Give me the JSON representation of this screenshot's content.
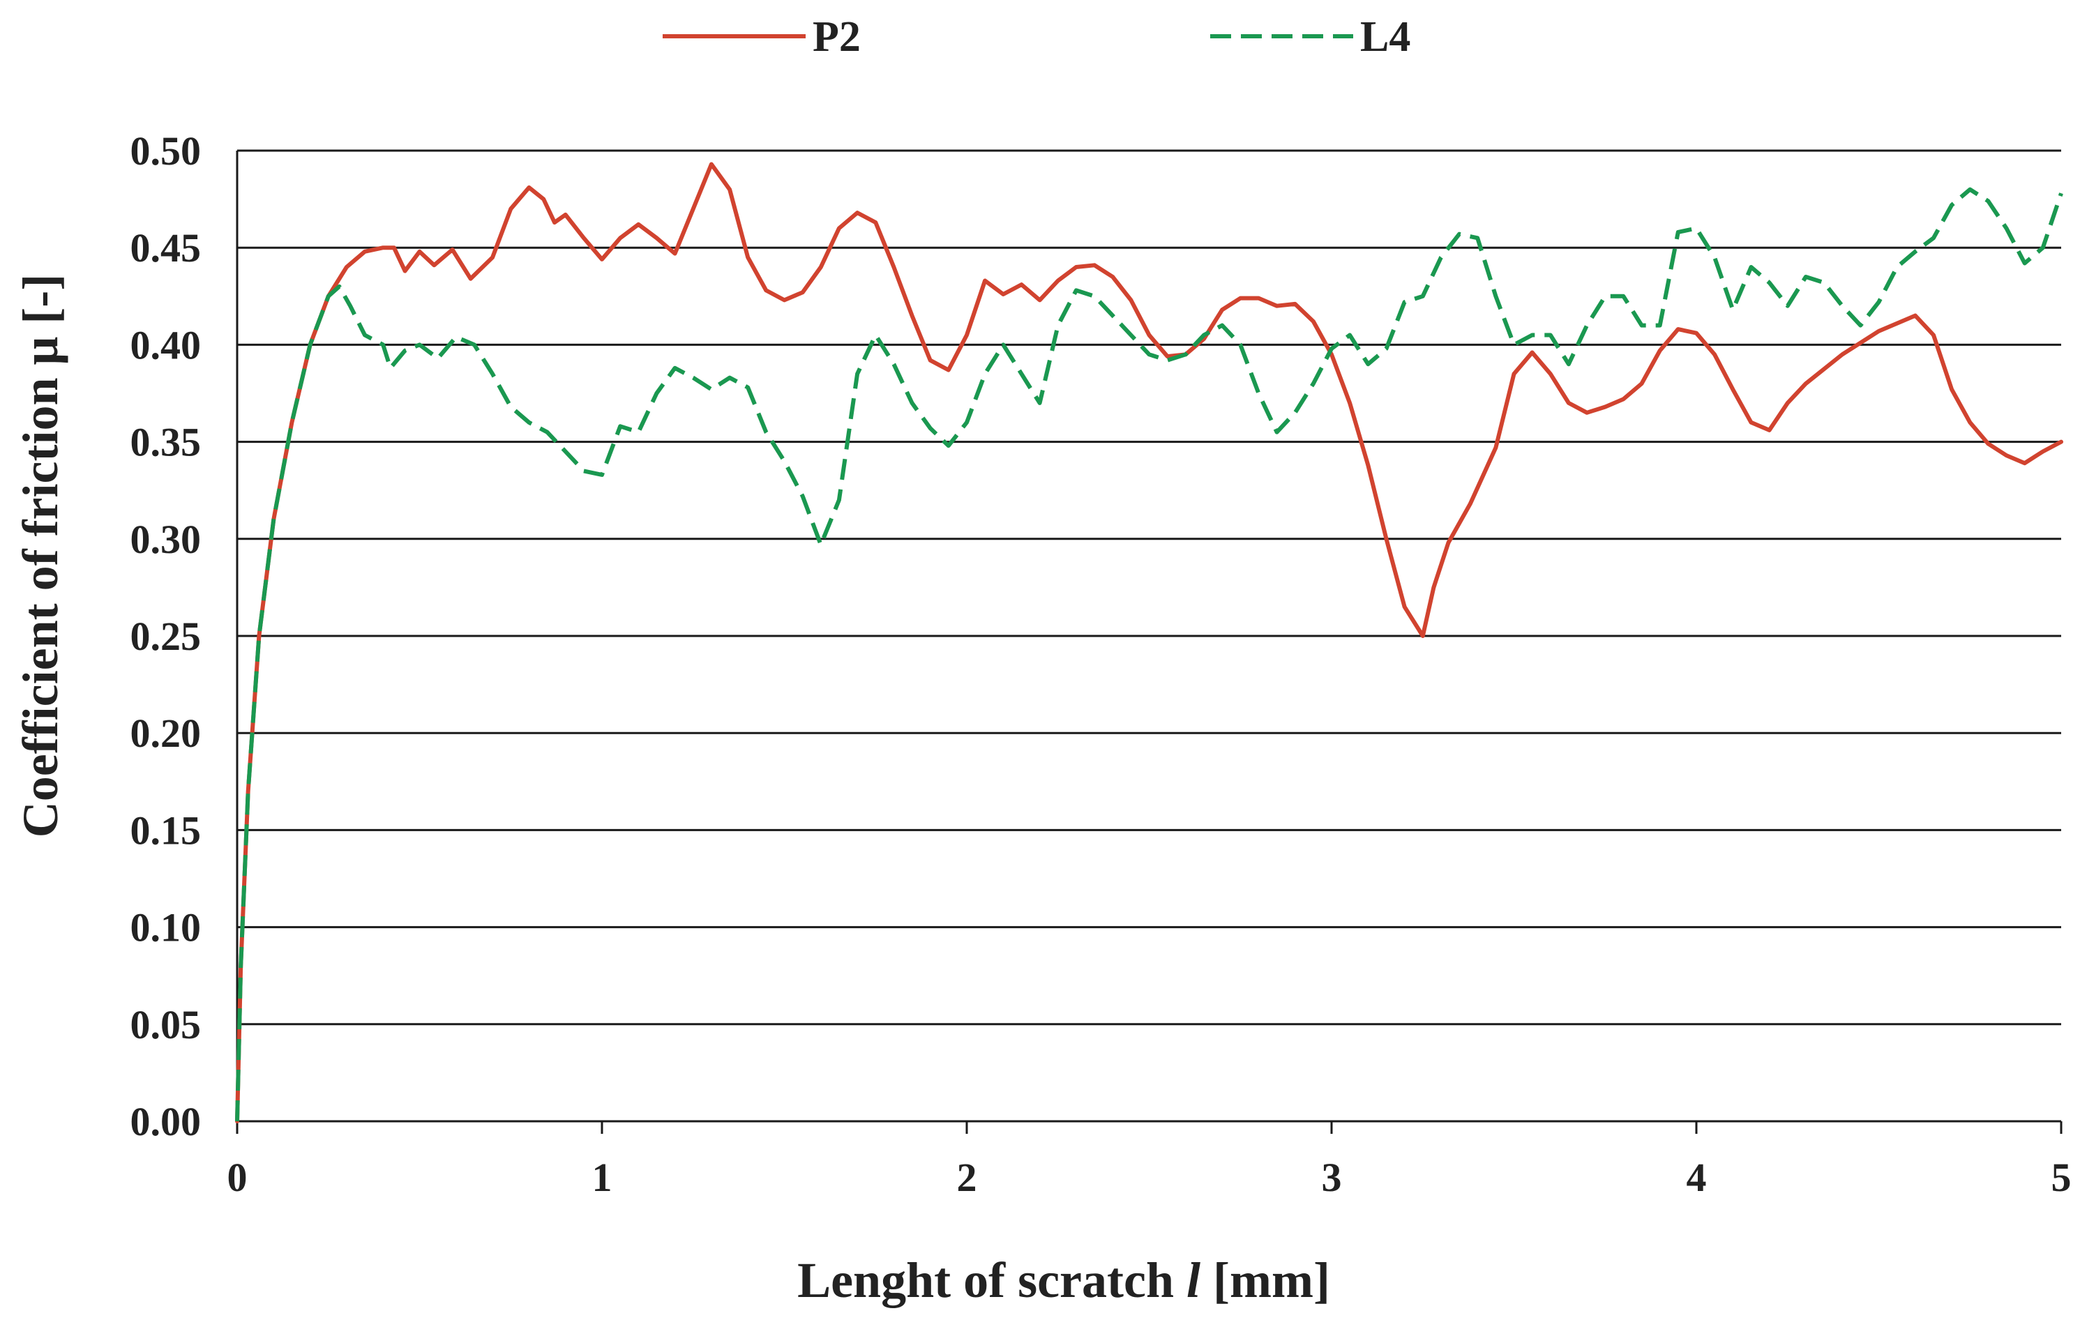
{
  "chart_data": {
    "type": "line",
    "xlabel": "Lenght of scratch",
    "xlabel_var": "l",
    "xlabel_unit": "[mm]",
    "ylabel": "Coefficient of friction μ  [-]",
    "xlim": [
      0,
      5
    ],
    "ylim": [
      0,
      0.5
    ],
    "x_ticks": [
      "0",
      "1",
      "2",
      "3",
      "4",
      "5"
    ],
    "y_ticks": [
      "0.00",
      "0.05",
      "0.10",
      "0.15",
      "0.20",
      "0.25",
      "0.30",
      "0.35",
      "0.40",
      "0.45",
      "0.50"
    ],
    "grid": "horizontal",
    "legend_position": "top",
    "series": [
      {
        "name": "P2",
        "color": "#d1432f",
        "style": "solid",
        "points": [
          [
            0,
            0
          ],
          [
            0.01,
            0.08
          ],
          [
            0.03,
            0.17
          ],
          [
            0.06,
            0.25
          ],
          [
            0.1,
            0.31
          ],
          [
            0.15,
            0.36
          ],
          [
            0.2,
            0.4
          ],
          [
            0.25,
            0.425
          ],
          [
            0.3,
            0.44
          ],
          [
            0.35,
            0.448
          ],
          [
            0.4,
            0.45
          ],
          [
            0.43,
            0.45
          ],
          [
            0.46,
            0.438
          ],
          [
            0.5,
            0.448
          ],
          [
            0.54,
            0.441
          ],
          [
            0.59,
            0.449
          ],
          [
            0.64,
            0.434
          ],
          [
            0.7,
            0.445
          ],
          [
            0.75,
            0.47
          ],
          [
            0.8,
            0.481
          ],
          [
            0.84,
            0.475
          ],
          [
            0.87,
            0.463
          ],
          [
            0.9,
            0.467
          ],
          [
            0.95,
            0.455
          ],
          [
            1.0,
            0.444
          ],
          [
            1.05,
            0.455
          ],
          [
            1.1,
            0.462
          ],
          [
            1.15,
            0.455
          ],
          [
            1.2,
            0.447
          ],
          [
            1.25,
            0.47
          ],
          [
            1.3,
            0.493
          ],
          [
            1.35,
            0.48
          ],
          [
            1.4,
            0.445
          ],
          [
            1.45,
            0.428
          ],
          [
            1.5,
            0.423
          ],
          [
            1.55,
            0.427
          ],
          [
            1.6,
            0.44
          ],
          [
            1.65,
            0.46
          ],
          [
            1.7,
            0.468
          ],
          [
            1.75,
            0.463
          ],
          [
            1.8,
            0.44
          ],
          [
            1.85,
            0.415
          ],
          [
            1.9,
            0.392
          ],
          [
            1.95,
            0.387
          ],
          [
            2.0,
            0.405
          ],
          [
            2.05,
            0.433
          ],
          [
            2.1,
            0.426
          ],
          [
            2.15,
            0.431
          ],
          [
            2.2,
            0.423
          ],
          [
            2.25,
            0.433
          ],
          [
            2.3,
            0.44
          ],
          [
            2.35,
            0.441
          ],
          [
            2.4,
            0.435
          ],
          [
            2.45,
            0.423
          ],
          [
            2.5,
            0.405
          ],
          [
            2.55,
            0.394
          ],
          [
            2.6,
            0.395
          ],
          [
            2.65,
            0.403
          ],
          [
            2.7,
            0.418
          ],
          [
            2.75,
            0.424
          ],
          [
            2.8,
            0.424
          ],
          [
            2.85,
            0.42
          ],
          [
            2.9,
            0.421
          ],
          [
            2.95,
            0.412
          ],
          [
            3.0,
            0.395
          ],
          [
            3.05,
            0.37
          ],
          [
            3.1,
            0.338
          ],
          [
            3.15,
            0.3
          ],
          [
            3.2,
            0.265
          ],
          [
            3.25,
            0.25
          ],
          [
            3.28,
            0.275
          ],
          [
            3.32,
            0.298
          ],
          [
            3.38,
            0.318
          ],
          [
            3.45,
            0.347
          ],
          [
            3.5,
            0.385
          ],
          [
            3.55,
            0.396
          ],
          [
            3.6,
            0.385
          ],
          [
            3.65,
            0.37
          ],
          [
            3.7,
            0.365
          ],
          [
            3.75,
            0.368
          ],
          [
            3.8,
            0.372
          ],
          [
            3.85,
            0.38
          ],
          [
            3.9,
            0.397
          ],
          [
            3.95,
            0.408
          ],
          [
            4.0,
            0.406
          ],
          [
            4.05,
            0.395
          ],
          [
            4.1,
            0.377
          ],
          [
            4.15,
            0.36
          ],
          [
            4.2,
            0.356
          ],
          [
            4.25,
            0.37
          ],
          [
            4.3,
            0.38
          ],
          [
            4.4,
            0.395
          ],
          [
            4.5,
            0.407
          ],
          [
            4.6,
            0.415
          ],
          [
            4.65,
            0.405
          ],
          [
            4.7,
            0.377
          ],
          [
            4.75,
            0.36
          ],
          [
            4.8,
            0.349
          ],
          [
            4.85,
            0.343
          ],
          [
            4.9,
            0.339
          ],
          [
            4.95,
            0.345
          ],
          [
            5.0,
            0.35
          ]
        ]
      },
      {
        "name": "L4",
        "color": "#1a9850",
        "style": "dashed",
        "points": [
          [
            0,
            0
          ],
          [
            0.01,
            0.08
          ],
          [
            0.03,
            0.17
          ],
          [
            0.06,
            0.25
          ],
          [
            0.1,
            0.31
          ],
          [
            0.15,
            0.36
          ],
          [
            0.2,
            0.4
          ],
          [
            0.25,
            0.425
          ],
          [
            0.28,
            0.43
          ],
          [
            0.31,
            0.42
          ],
          [
            0.35,
            0.405
          ],
          [
            0.4,
            0.4
          ],
          [
            0.42,
            0.388
          ],
          [
            0.46,
            0.397
          ],
          [
            0.5,
            0.4
          ],
          [
            0.55,
            0.393
          ],
          [
            0.6,
            0.404
          ],
          [
            0.65,
            0.4
          ],
          [
            0.7,
            0.385
          ],
          [
            0.75,
            0.368
          ],
          [
            0.8,
            0.36
          ],
          [
            0.85,
            0.355
          ],
          [
            0.9,
            0.345
          ],
          [
            0.95,
            0.335
          ],
          [
            1.0,
            0.333
          ],
          [
            1.05,
            0.358
          ],
          [
            1.1,
            0.355
          ],
          [
            1.15,
            0.375
          ],
          [
            1.2,
            0.388
          ],
          [
            1.25,
            0.383
          ],
          [
            1.3,
            0.377
          ],
          [
            1.35,
            0.383
          ],
          [
            1.4,
            0.378
          ],
          [
            1.45,
            0.355
          ],
          [
            1.5,
            0.34
          ],
          [
            1.55,
            0.322
          ],
          [
            1.6,
            0.297
          ],
          [
            1.65,
            0.32
          ],
          [
            1.7,
            0.385
          ],
          [
            1.75,
            0.405
          ],
          [
            1.8,
            0.39
          ],
          [
            1.85,
            0.37
          ],
          [
            1.9,
            0.357
          ],
          [
            1.95,
            0.348
          ],
          [
            2.0,
            0.36
          ],
          [
            2.05,
            0.385
          ],
          [
            2.1,
            0.4
          ],
          [
            2.15,
            0.385
          ],
          [
            2.2,
            0.37
          ],
          [
            2.25,
            0.41
          ],
          [
            2.3,
            0.428
          ],
          [
            2.35,
            0.425
          ],
          [
            2.4,
            0.415
          ],
          [
            2.45,
            0.405
          ],
          [
            2.5,
            0.395
          ],
          [
            2.55,
            0.392
          ],
          [
            2.6,
            0.395
          ],
          [
            2.65,
            0.405
          ],
          [
            2.7,
            0.41
          ],
          [
            2.75,
            0.4
          ],
          [
            2.8,
            0.375
          ],
          [
            2.85,
            0.355
          ],
          [
            2.9,
            0.365
          ],
          [
            2.95,
            0.38
          ],
          [
            3.0,
            0.398
          ],
          [
            3.05,
            0.405
          ],
          [
            3.1,
            0.39
          ],
          [
            3.15,
            0.398
          ],
          [
            3.2,
            0.422
          ],
          [
            3.25,
            0.425
          ],
          [
            3.3,
            0.445
          ],
          [
            3.35,
            0.457
          ],
          [
            3.4,
            0.455
          ],
          [
            3.45,
            0.425
          ],
          [
            3.5,
            0.4
          ],
          [
            3.55,
            0.405
          ],
          [
            3.6,
            0.405
          ],
          [
            3.65,
            0.39
          ],
          [
            3.7,
            0.41
          ],
          [
            3.75,
            0.425
          ],
          [
            3.8,
            0.425
          ],
          [
            3.85,
            0.41
          ],
          [
            3.9,
            0.41
          ],
          [
            3.95,
            0.458
          ],
          [
            4.0,
            0.46
          ],
          [
            4.05,
            0.445
          ],
          [
            4.1,
            0.418
          ],
          [
            4.15,
            0.44
          ],
          [
            4.2,
            0.432
          ],
          [
            4.25,
            0.42
          ],
          [
            4.3,
            0.435
          ],
          [
            4.35,
            0.432
          ],
          [
            4.4,
            0.42
          ],
          [
            4.45,
            0.41
          ],
          [
            4.5,
            0.422
          ],
          [
            4.55,
            0.44
          ],
          [
            4.6,
            0.448
          ],
          [
            4.65,
            0.455
          ],
          [
            4.7,
            0.472
          ],
          [
            4.75,
            0.48
          ],
          [
            4.8,
            0.474
          ],
          [
            4.85,
            0.46
          ],
          [
            4.9,
            0.442
          ],
          [
            4.95,
            0.45
          ],
          [
            5.0,
            0.478
          ]
        ]
      }
    ]
  }
}
